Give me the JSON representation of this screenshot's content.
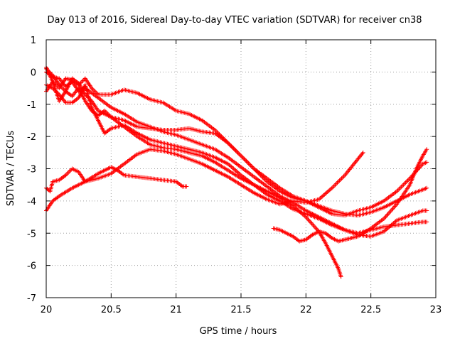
{
  "chart_data": {
    "type": "scatter",
    "title": "Day 013 of 2016, Sidereal Day-to-day VTEC variation (SDTVAR) for receiver cn38",
    "xlabel": "GPS time / hours",
    "ylabel": "SDTVAR / TECUs",
    "xlim": [
      20,
      23
    ],
    "ylim": [
      -7,
      1
    ],
    "xticks": [
      20,
      20.5,
      21,
      21.5,
      22,
      22.5,
      23
    ],
    "xtick_labels": [
      "20",
      "20.5",
      "21",
      "21.5",
      "22",
      "22.5",
      "23"
    ],
    "yticks": [
      -7,
      -6,
      -5,
      -4,
      -3,
      -2,
      -1,
      0,
      1
    ],
    "ytick_labels": [
      "-7",
      "-6",
      "-5",
      "-4",
      "-3",
      "-2",
      "-1",
      "0",
      "1"
    ],
    "grid": true,
    "marker": "plus",
    "color": "#ff0000",
    "series": [
      {
        "points": [
          [
            20.0,
            -4.3
          ],
          [
            20.05,
            -4.0
          ],
          [
            20.1,
            -3.85
          ],
          [
            20.2,
            -3.6
          ],
          [
            20.3,
            -3.4
          ],
          [
            20.4,
            -3.15
          ],
          [
            20.5,
            -2.95
          ],
          [
            20.55,
            -3.05
          ],
          [
            20.6,
            -3.2
          ],
          [
            20.7,
            -3.25
          ],
          [
            20.8,
            -3.3
          ],
          [
            20.9,
            -3.35
          ],
          [
            21.0,
            -3.4
          ],
          [
            21.05,
            -3.55
          ],
          [
            21.08,
            -3.55
          ]
        ]
      },
      {
        "points": [
          [
            20.0,
            -3.6
          ],
          [
            20.03,
            -3.7
          ],
          [
            20.05,
            -3.4
          ],
          [
            20.1,
            -3.35
          ],
          [
            20.15,
            -3.2
          ],
          [
            20.2,
            -3.0
          ],
          [
            20.25,
            -3.1
          ],
          [
            20.3,
            -3.4
          ],
          [
            20.4,
            -3.3
          ],
          [
            20.5,
            -3.15
          ],
          [
            20.6,
            -2.85
          ],
          [
            20.7,
            -2.55
          ],
          [
            20.8,
            -2.4
          ],
          [
            20.9,
            -2.45
          ],
          [
            21.0,
            -2.55
          ],
          [
            21.1,
            -2.7
          ],
          [
            21.2,
            -2.85
          ],
          [
            21.3,
            -3.05
          ],
          [
            21.4,
            -3.25
          ],
          [
            21.5,
            -3.5
          ],
          [
            21.6,
            -3.75
          ],
          [
            21.7,
            -3.95
          ],
          [
            21.8,
            -4.1
          ],
          [
            21.9,
            -4.0
          ],
          [
            22.0,
            -4.05
          ],
          [
            22.1,
            -3.95
          ],
          [
            22.2,
            -3.6
          ],
          [
            22.3,
            -3.2
          ],
          [
            22.4,
            -2.7
          ],
          [
            22.44,
            -2.5
          ]
        ]
      },
      {
        "points": [
          [
            20.0,
            0.1
          ],
          [
            20.05,
            -0.1
          ],
          [
            20.1,
            -0.4
          ],
          [
            20.15,
            -0.6
          ],
          [
            20.2,
            -0.75
          ],
          [
            20.25,
            -0.5
          ],
          [
            20.3,
            -0.9
          ],
          [
            20.35,
            -1.2
          ],
          [
            20.4,
            -1.35
          ],
          [
            20.45,
            -1.2
          ],
          [
            20.5,
            -1.4
          ],
          [
            20.6,
            -1.5
          ],
          [
            20.7,
            -1.7
          ],
          [
            20.8,
            -1.75
          ],
          [
            20.9,
            -1.8
          ],
          [
            21.0,
            -1.8
          ],
          [
            21.1,
            -1.75
          ],
          [
            21.2,
            -1.85
          ],
          [
            21.3,
            -1.9
          ],
          [
            21.4,
            -2.2
          ],
          [
            21.5,
            -2.6
          ],
          [
            21.6,
            -3.0
          ],
          [
            21.7,
            -3.3
          ],
          [
            21.8,
            -3.6
          ],
          [
            21.9,
            -3.85
          ],
          [
            22.0,
            -4.0
          ],
          [
            22.1,
            -4.15
          ],
          [
            22.2,
            -4.3
          ],
          [
            22.3,
            -4.4
          ],
          [
            22.4,
            -4.45
          ],
          [
            22.5,
            -4.35
          ],
          [
            22.6,
            -4.2
          ],
          [
            22.7,
            -4.0
          ],
          [
            22.8,
            -3.8
          ],
          [
            22.9,
            -3.65
          ],
          [
            22.93,
            -3.6
          ]
        ]
      },
      {
        "points": [
          [
            20.0,
            -0.6
          ],
          [
            20.05,
            -0.3
          ],
          [
            20.1,
            -0.5
          ],
          [
            20.15,
            -0.2
          ],
          [
            20.2,
            -0.25
          ],
          [
            20.25,
            -0.4
          ],
          [
            20.3,
            -0.2
          ],
          [
            20.35,
            -0.5
          ],
          [
            20.4,
            -0.7
          ],
          [
            20.5,
            -0.7
          ],
          [
            20.6,
            -0.55
          ],
          [
            20.7,
            -0.65
          ],
          [
            20.8,
            -0.85
          ],
          [
            20.9,
            -0.95
          ],
          [
            21.0,
            -1.2
          ],
          [
            21.1,
            -1.3
          ],
          [
            21.2,
            -1.5
          ],
          [
            21.3,
            -1.8
          ],
          [
            21.4,
            -2.2
          ],
          [
            21.5,
            -2.6
          ],
          [
            21.6,
            -3.0
          ],
          [
            21.7,
            -3.4
          ],
          [
            21.8,
            -3.7
          ],
          [
            21.9,
            -3.9
          ],
          [
            22.0,
            -4.0
          ],
          [
            22.1,
            -4.2
          ],
          [
            22.2,
            -4.4
          ],
          [
            22.3,
            -4.45
          ],
          [
            22.4,
            -4.3
          ],
          [
            22.5,
            -4.2
          ],
          [
            22.6,
            -4.0
          ],
          [
            22.7,
            -3.7
          ],
          [
            22.8,
            -3.3
          ],
          [
            22.9,
            -2.85
          ],
          [
            22.93,
            -2.8
          ]
        ]
      },
      {
        "points": [
          [
            20.0,
            0.0
          ],
          [
            20.05,
            -0.15
          ],
          [
            20.1,
            -0.2
          ],
          [
            20.15,
            -0.45
          ],
          [
            20.2,
            -0.3
          ],
          [
            20.25,
            -0.6
          ],
          [
            20.3,
            -0.5
          ],
          [
            20.4,
            -0.8
          ],
          [
            20.5,
            -1.1
          ],
          [
            20.6,
            -1.3
          ],
          [
            20.7,
            -1.55
          ],
          [
            20.8,
            -1.7
          ],
          [
            20.9,
            -1.85
          ],
          [
            21.0,
            -1.95
          ],
          [
            21.1,
            -2.1
          ],
          [
            21.2,
            -2.25
          ],
          [
            21.3,
            -2.4
          ],
          [
            21.4,
            -2.65
          ],
          [
            21.5,
            -2.95
          ],
          [
            21.6,
            -3.25
          ],
          [
            21.7,
            -3.55
          ],
          [
            21.8,
            -3.85
          ],
          [
            21.9,
            -4.05
          ],
          [
            22.0,
            -4.3
          ],
          [
            22.1,
            -4.5
          ],
          [
            22.2,
            -4.7
          ],
          [
            22.3,
            -4.9
          ],
          [
            22.4,
            -5.05
          ],
          [
            22.5,
            -5.1
          ],
          [
            22.6,
            -4.95
          ],
          [
            22.7,
            -4.6
          ],
          [
            22.8,
            -4.45
          ],
          [
            22.9,
            -4.3
          ],
          [
            22.93,
            -4.3
          ]
        ]
      },
      {
        "points": [
          [
            20.0,
            -0.4
          ],
          [
            20.05,
            -0.5
          ],
          [
            20.1,
            -0.7
          ],
          [
            20.15,
            -0.95
          ],
          [
            20.2,
            -0.95
          ],
          [
            20.25,
            -0.8
          ],
          [
            20.3,
            -0.4
          ],
          [
            20.35,
            -1.1
          ],
          [
            20.4,
            -1.5
          ],
          [
            20.45,
            -1.9
          ],
          [
            20.5,
            -1.75
          ],
          [
            20.6,
            -1.65
          ],
          [
            20.7,
            -1.9
          ],
          [
            20.8,
            -2.1
          ],
          [
            20.9,
            -2.2
          ],
          [
            21.0,
            -2.3
          ],
          [
            21.1,
            -2.4
          ],
          [
            21.2,
            -2.5
          ],
          [
            21.3,
            -2.65
          ],
          [
            21.4,
            -2.85
          ],
          [
            21.5,
            -3.2
          ],
          [
            21.6,
            -3.5
          ],
          [
            21.7,
            -3.8
          ],
          [
            21.8,
            -4.0
          ],
          [
            21.9,
            -4.25
          ],
          [
            22.0,
            -4.4
          ],
          [
            22.1,
            -4.55
          ],
          [
            22.2,
            -4.75
          ],
          [
            22.3,
            -4.9
          ],
          [
            22.4,
            -5.0
          ],
          [
            22.5,
            -4.9
          ],
          [
            22.6,
            -4.8
          ],
          [
            22.7,
            -4.75
          ],
          [
            22.8,
            -4.7
          ],
          [
            22.9,
            -4.65
          ],
          [
            22.93,
            -4.65
          ]
        ]
      },
      {
        "points": [
          [
            20.0,
            0.15
          ],
          [
            20.05,
            -0.3
          ],
          [
            20.1,
            -0.9
          ],
          [
            20.15,
            -0.6
          ],
          [
            20.2,
            -0.2
          ],
          [
            20.25,
            -0.35
          ],
          [
            20.3,
            -0.7
          ],
          [
            20.35,
            -0.9
          ],
          [
            20.4,
            -1.2
          ],
          [
            20.5,
            -1.4
          ],
          [
            20.6,
            -1.7
          ],
          [
            20.7,
            -2.0
          ],
          [
            20.8,
            -2.25
          ],
          [
            20.9,
            -2.35
          ],
          [
            21.0,
            -2.4
          ],
          [
            21.1,
            -2.5
          ],
          [
            21.2,
            -2.6
          ],
          [
            21.3,
            -2.8
          ],
          [
            21.4,
            -3.05
          ],
          [
            21.5,
            -3.3
          ],
          [
            21.6,
            -3.5
          ],
          [
            21.7,
            -3.7
          ],
          [
            21.8,
            -3.9
          ],
          [
            21.9,
            -4.15
          ],
          [
            22.0,
            -4.5
          ],
          [
            22.1,
            -4.95
          ],
          [
            22.15,
            -5.3
          ],
          [
            22.2,
            -5.7
          ],
          [
            22.25,
            -6.1
          ],
          [
            22.27,
            -6.35
          ]
        ]
      },
      {
        "points": [
          [
            21.75,
            -4.85
          ],
          [
            21.8,
            -4.9
          ],
          [
            21.85,
            -5.0
          ],
          [
            21.9,
            -5.1
          ],
          [
            21.95,
            -5.25
          ],
          [
            22.0,
            -5.2
          ],
          [
            22.05,
            -5.05
          ],
          [
            22.1,
            -4.95
          ],
          [
            22.15,
            -5.0
          ],
          [
            22.2,
            -5.15
          ],
          [
            22.25,
            -5.25
          ],
          [
            22.3,
            -5.2
          ],
          [
            22.35,
            -5.15
          ],
          [
            22.4,
            -5.1
          ],
          [
            22.5,
            -4.85
          ],
          [
            22.6,
            -4.55
          ],
          [
            22.7,
            -4.1
          ],
          [
            22.8,
            -3.5
          ],
          [
            22.85,
            -3.0
          ],
          [
            22.9,
            -2.6
          ],
          [
            22.93,
            -2.4
          ]
        ]
      }
    ]
  }
}
